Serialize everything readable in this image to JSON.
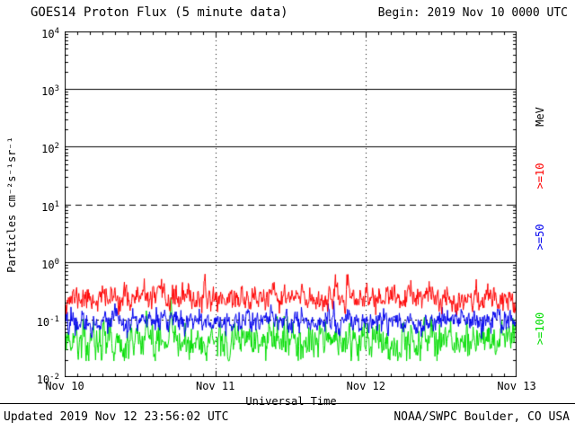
{
  "title": "GOES14 Proton Flux (5 minute data)",
  "begin_label": "Begin: 2019 Nov 10 0000 UTC",
  "footer": {
    "updated": "Updated 2019 Nov 12 23:56:02 UTC",
    "source": "NOAA/SWPC Boulder, CO USA"
  },
  "axes": {
    "x_label": "Universal Time",
    "y_label": "Particles cm⁻²s⁻¹sr⁻¹",
    "y_tick_base": "10",
    "y_tick_exponents": [
      4,
      3,
      2,
      1,
      0,
      -1,
      -2
    ],
    "x_tick_labels": [
      "Nov 10",
      "Nov 11",
      "Nov 12",
      "Nov 13"
    ]
  },
  "right_labels": [
    {
      "text": "MeV",
      "color": "#000000"
    },
    {
      "text": ">=10",
      "color": "#ff0000"
    },
    {
      "text": ">=50",
      "color": "#0000ee"
    },
    {
      "text": ">=100",
      "color": "#00dd00"
    }
  ],
  "chart_data": {
    "type": "line",
    "title": "GOES14 Proton Flux (5 minute data)",
    "xlabel": "Universal Time",
    "ylabel": "Particles cm^-2 s^-1 sr^-1",
    "y_scale": "log10",
    "ylim": [
      0.01,
      10000
    ],
    "x_range": [
      "2019 Nov 10 0000 UTC",
      "2019 Nov 13 0000 UTC"
    ],
    "cadence_minutes": 5,
    "n_points": 864,
    "grid": {
      "horizontal": [
        {
          "value": 1000,
          "style": "solid"
        },
        {
          "value": 100,
          "style": "solid"
        },
        {
          "value": 10,
          "style": "dashed"
        },
        {
          "value": 1,
          "style": "solid"
        },
        {
          "value": 0.1,
          "style": "dotted"
        }
      ],
      "vertical_days": [
        "Nov 11",
        "Nov 12"
      ]
    },
    "series": [
      {
        "name": ">=10 MeV",
        "color": "#ff0000",
        "typical_flux": 0.25,
        "flux_range": [
          0.12,
          0.65
        ],
        "gen": {
          "seed": 11,
          "log_mean": -0.63,
          "log_sigma": 0.1,
          "phi": 0.45,
          "clamp": [
            -0.92,
            -0.2
          ],
          "spikes": []
        }
      },
      {
        "name": ">=50 MeV",
        "color": "#0000ee",
        "typical_flux": 0.09,
        "flux_range": [
          0.04,
          0.2
        ],
        "gen": {
          "seed": 22,
          "log_mean": -1.03,
          "log_sigma": 0.09,
          "phi": 0.45,
          "clamp": [
            -1.4,
            -0.68
          ],
          "spikes": []
        }
      },
      {
        "name": ">=100 MeV",
        "color": "#00dd00",
        "typical_flux": 0.04,
        "flux_range": [
          0.02,
          0.25
        ],
        "gen": {
          "seed": 33,
          "log_mean": -1.38,
          "log_sigma": 0.15,
          "phi": 0.4,
          "clamp": [
            -1.72,
            -0.8
          ],
          "spikes": [
            {
              "i": 203,
              "log": -0.62
            },
            {
              "i": 700,
              "log": -0.95
            }
          ]
        }
      }
    ]
  }
}
